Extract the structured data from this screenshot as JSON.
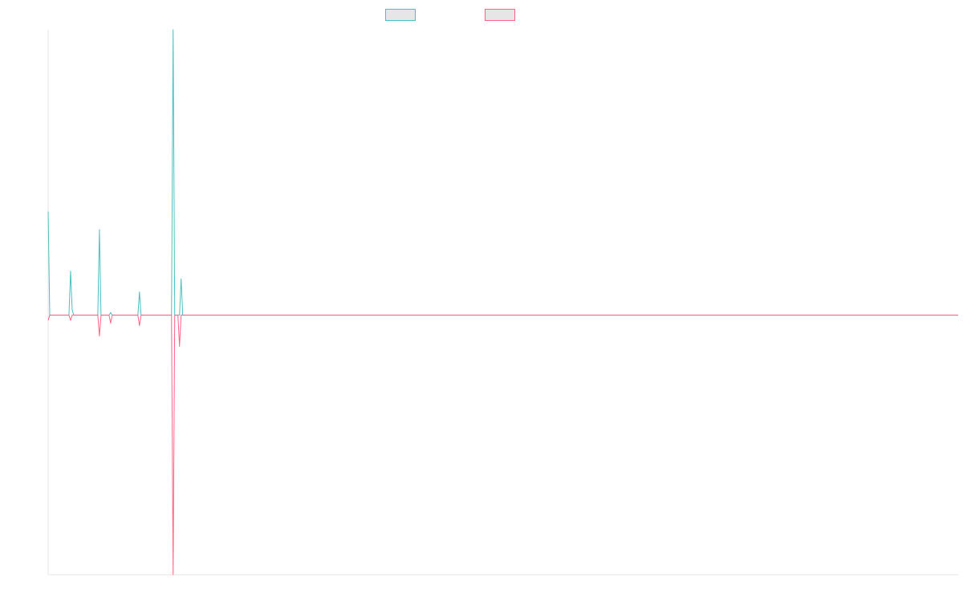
{
  "chart_data": {
    "type": "line",
    "title": "",
    "xlabel": "",
    "ylabel": "",
    "legend": "top",
    "grid": false,
    "x": [
      0,
      1,
      2,
      3,
      4,
      5,
      6,
      7,
      8,
      9,
      10,
      11,
      12,
      13,
      14,
      15,
      16,
      17,
      18,
      19,
      20,
      21,
      22,
      23,
      24,
      25,
      26,
      27,
      28,
      29,
      30,
      31,
      32,
      33,
      34,
      35,
      36,
      37,
      38,
      39,
      40,
      41,
      42,
      43,
      44,
      45,
      46,
      47,
      48,
      49,
      50,
      51,
      52,
      53,
      54,
      55,
      56,
      57,
      58,
      59,
      60,
      61,
      62,
      63,
      64,
      65,
      66,
      67,
      68,
      69,
      70,
      71,
      72,
      73,
      74,
      75,
      76,
      77,
      78,
      79,
      80,
      81,
      82,
      83,
      84,
      85,
      86,
      87,
      88,
      89,
      90,
      91,
      92,
      93,
      94,
      95,
      96,
      97,
      98,
      99,
      100,
      101,
      102,
      103,
      104,
      105,
      106,
      107,
      108,
      109,
      110,
      111,
      112,
      113,
      114,
      115,
      116,
      117,
      118,
      119,
      120,
      121,
      122,
      123,
      124,
      125,
      126,
      127,
      128,
      129,
      130,
      131,
      132,
      133,
      134,
      135,
      136,
      137,
      138,
      139,
      140,
      141,
      142,
      143,
      144,
      145,
      146,
      147,
      148,
      149,
      150,
      151,
      152,
      153,
      154,
      155,
      156,
      157,
      158,
      159,
      160,
      161,
      162,
      163,
      164,
      165,
      166,
      167,
      168,
      169,
      170,
      171,
      172,
      173,
      174,
      175,
      176,
      177,
      178,
      179,
      180,
      181,
      182,
      183,
      184,
      185,
      186,
      187,
      188,
      189,
      190,
      191,
      192,
      193,
      194,
      195,
      196,
      197,
      198,
      199,
      200,
      201,
      202,
      203,
      204,
      205,
      206,
      207,
      208,
      209,
      210,
      211,
      212,
      213,
      214,
      215,
      216,
      217,
      218,
      219,
      220,
      221,
      222,
      223,
      224,
      225,
      226,
      227,
      228,
      229,
      230,
      231,
      232,
      233,
      234,
      235,
      236,
      237,
      238,
      239,
      240,
      241,
      242,
      243,
      244,
      245,
      246,
      247,
      248,
      249,
      250,
      251,
      252,
      253,
      254,
      255,
      256,
      257,
      258,
      259,
      260,
      261,
      262,
      263,
      264,
      265,
      266,
      267,
      268,
      269,
      270,
      271,
      272,
      273,
      274,
      275,
      276,
      277,
      278,
      279,
      280,
      281,
      282,
      283,
      284,
      285,
      286,
      287,
      288,
      289,
      290,
      291,
      292,
      293,
      294,
      295,
      296,
      297,
      298,
      299,
      300,
      301,
      302,
      303,
      304,
      305,
      306,
      307,
      308,
      309,
      310,
      311,
      312,
      313,
      314,
      315,
      316,
      317,
      318,
      319,
      320,
      321,
      322,
      323,
      324,
      325,
      326,
      327,
      328,
      329,
      330,
      331,
      332,
      333,
      334,
      335,
      336,
      337,
      338,
      339,
      340,
      341,
      342,
      343,
      344,
      345,
      346,
      347,
      348,
      349,
      350,
      351,
      352,
      353,
      354,
      355,
      356,
      357,
      358,
      359,
      360,
      361,
      362,
      363,
      364,
      365,
      366,
      367,
      368,
      369,
      370,
      371,
      372,
      373,
      374,
      375,
      376,
      377,
      378,
      379,
      380,
      381,
      382,
      383,
      384,
      385,
      386,
      387,
      388,
      389,
      390,
      391,
      392,
      393,
      394,
      395,
      396,
      397,
      398,
      399,
      400,
      401,
      402,
      403,
      404,
      405,
      406,
      407,
      408,
      409,
      410,
      411,
      412,
      413,
      414,
      415,
      416,
      417,
      418,
      419,
      420,
      421,
      422,
      423,
      424,
      425,
      426,
      427,
      428,
      429,
      430,
      431,
      432,
      433,
      434,
      435,
      436,
      437,
      438,
      439,
      440,
      441,
      442,
      443,
      444,
      445,
      446,
      447,
      448,
      449,
      450,
      451,
      452,
      453,
      454,
      455,
      456,
      457,
      458,
      459,
      460,
      461,
      462,
      463,
      464,
      465,
      466,
      467,
      468,
      469,
      470,
      471,
      472,
      473,
      474,
      475,
      476,
      477,
      478,
      479,
      480,
      481,
      482,
      483,
      484,
      485,
      486,
      487,
      488,
      489,
      490,
      491,
      492,
      493,
      494,
      495,
      496,
      497,
      498,
      499,
      500,
      501,
      502,
      503,
      504,
      505,
      506,
      507,
      508,
      509,
      510,
      511,
      512,
      513,
      514,
      515,
      516,
      517,
      518,
      519,
      520,
      521,
      522,
      523,
      524,
      525,
      526,
      527,
      528,
      529,
      530,
      531,
      532,
      533,
      534,
      535,
      536,
      537,
      538,
      539,
      540,
      541,
      542,
      543,
      544,
      545,
      546,
      547,
      548,
      549,
      550,
      551,
      552,
      553,
      554,
      555,
      556,
      557,
      558,
      559,
      560,
      561,
      562,
      563,
      564,
      565,
      566,
      567,
      568
    ],
    "xlim": [
      0,
      568
    ],
    "ylim": [
      -1.0,
      1.1
    ],
    "series": [
      {
        "name": "",
        "color": "#4bc0c0",
        "points": [
          [
            0,
            0.4
          ],
          [
            1,
            0
          ],
          [
            13,
            0
          ],
          [
            14,
            0.17
          ],
          [
            15,
            0.02
          ],
          [
            16,
            0
          ],
          [
            31,
            0
          ],
          [
            32,
            0.33
          ],
          [
            33,
            0
          ],
          [
            38,
            0
          ],
          [
            39,
            0.01
          ],
          [
            40,
            0
          ],
          [
            56,
            0
          ],
          [
            57,
            0.09
          ],
          [
            58,
            0
          ],
          [
            77,
            0
          ],
          [
            78,
            1.1
          ],
          [
            79,
            0
          ],
          [
            82,
            0
          ],
          [
            83,
            0.14
          ],
          [
            84,
            0
          ],
          [
            568,
            0
          ]
        ]
      },
      {
        "name": "",
        "color": "#ff6384",
        "points": [
          [
            0,
            -0.02
          ],
          [
            1,
            0
          ],
          [
            13,
            0
          ],
          [
            14,
            -0.02
          ],
          [
            15,
            0
          ],
          [
            31,
            0
          ],
          [
            32,
            -0.08
          ],
          [
            33,
            0
          ],
          [
            38,
            0
          ],
          [
            39,
            -0.03
          ],
          [
            40,
            0
          ],
          [
            56,
            0
          ],
          [
            57,
            -0.04
          ],
          [
            58,
            0
          ],
          [
            77,
            0
          ],
          [
            78,
            -1.0
          ],
          [
            79,
            0
          ],
          [
            81,
            0
          ],
          [
            82,
            -0.12
          ],
          [
            83,
            0
          ],
          [
            568,
            0
          ]
        ]
      }
    ]
  }
}
